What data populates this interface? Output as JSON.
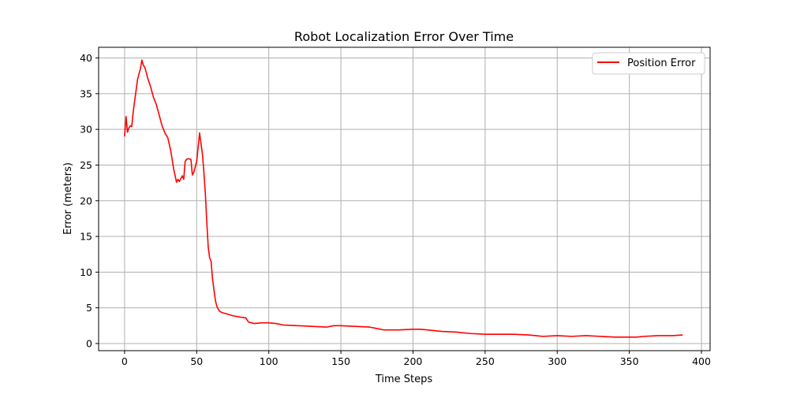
{
  "chart_data": {
    "type": "line",
    "title": "Robot Localization Error Over Time",
    "xlabel": "Time Steps",
    "ylabel": "Error (meters)",
    "xlim": [
      -18,
      406
    ],
    "ylim": [
      -1,
      41.5
    ],
    "xticks": [
      0,
      50,
      100,
      150,
      200,
      250,
      300,
      350,
      400
    ],
    "yticks": [
      0,
      5,
      10,
      15,
      20,
      25,
      30,
      35,
      40
    ],
    "xtick_labels": [
      "0",
      "50",
      "100",
      "150",
      "200",
      "250",
      "300",
      "350",
      "400"
    ],
    "ytick_labels": [
      "0",
      "5",
      "10",
      "15",
      "20",
      "25",
      "30",
      "35",
      "40"
    ],
    "grid": true,
    "legend": {
      "location": "upper-right",
      "entries": [
        "Position Error"
      ]
    },
    "series": [
      {
        "name": "Position Error",
        "color": "#ff0000",
        "x": [
          0,
          1,
          2,
          3,
          4,
          5,
          6,
          7,
          8,
          9,
          10,
          11,
          12,
          13,
          14,
          15,
          16,
          18,
          20,
          22,
          24,
          26,
          28,
          30,
          32,
          34,
          36,
          37,
          38,
          40,
          41,
          42,
          43,
          44,
          46,
          47,
          48,
          50,
          51,
          52,
          53,
          54,
          55,
          56,
          57,
          58,
          59,
          60,
          61,
          62,
          63,
          64,
          65,
          66,
          68,
          70,
          75,
          80,
          84,
          86,
          90,
          95,
          100,
          105,
          110,
          120,
          130,
          140,
          145,
          150,
          160,
          170,
          175,
          180,
          190,
          200,
          205,
          210,
          220,
          230,
          240,
          250,
          260,
          270,
          280,
          285,
          290,
          300,
          310,
          320,
          330,
          340,
          350,
          355,
          360,
          370,
          380,
          387
        ],
        "y": [
          29.0,
          31.8,
          29.6,
          30.2,
          30.5,
          30.4,
          32.5,
          34.0,
          35.5,
          37.0,
          37.8,
          38.5,
          39.7,
          39.0,
          38.7,
          38.0,
          37.2,
          36.0,
          34.5,
          33.5,
          32.0,
          30.5,
          29.5,
          28.8,
          27.0,
          24.5,
          22.6,
          23.0,
          22.7,
          23.5,
          23.0,
          25.5,
          25.8,
          25.9,
          25.8,
          23.6,
          24.0,
          25.5,
          27.5,
          29.5,
          28.0,
          26.5,
          24.0,
          21.0,
          17.0,
          13.5,
          12.0,
          11.5,
          9.0,
          7.5,
          6.0,
          5.2,
          4.8,
          4.5,
          4.3,
          4.2,
          3.9,
          3.7,
          3.6,
          3.0,
          2.8,
          2.9,
          2.9,
          2.8,
          2.6,
          2.5,
          2.4,
          2.3,
          2.5,
          2.5,
          2.4,
          2.3,
          2.1,
          1.9,
          1.9,
          2.0,
          2.0,
          1.9,
          1.7,
          1.6,
          1.4,
          1.3,
          1.3,
          1.3,
          1.2,
          1.1,
          1.0,
          1.1,
          1.0,
          1.1,
          1.0,
          0.9,
          0.9,
          0.9,
          1.0,
          1.1,
          1.1,
          1.2
        ]
      }
    ]
  }
}
